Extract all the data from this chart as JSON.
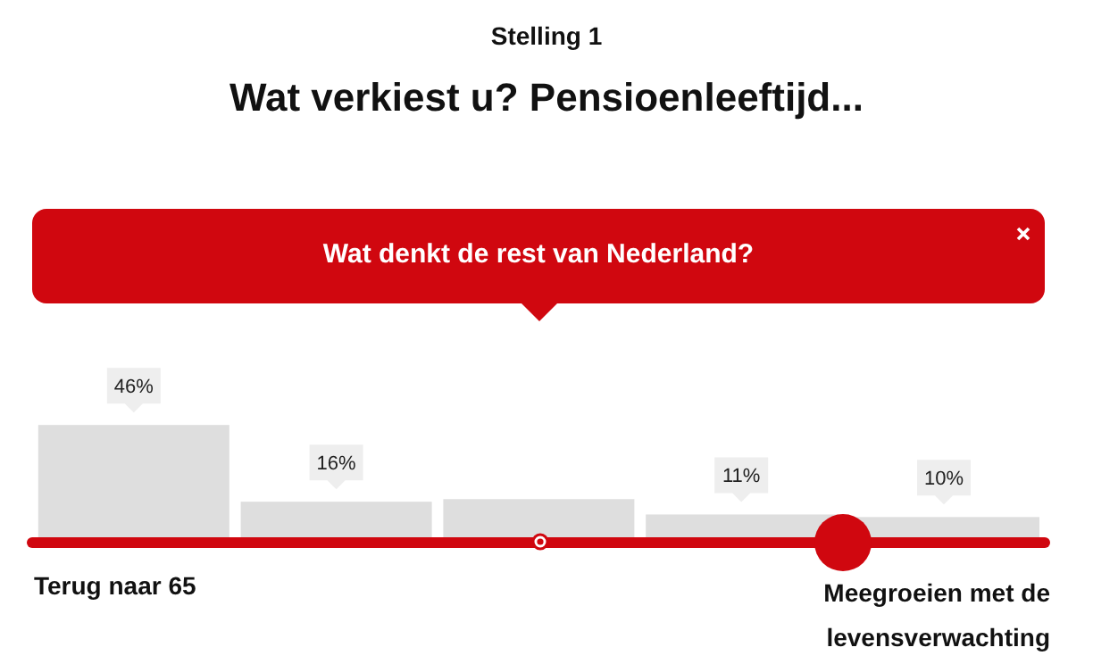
{
  "chart_data": {
    "type": "bar",
    "subtitle": "Stelling 1",
    "title": "Wat verkiest u? Pensioenleeftijd...",
    "annotations": [
      "Wat denkt de rest van Nederland?",
      "Terug naar 65",
      "Meegroeien met de levensverwachting"
    ],
    "categories": [
      null,
      null,
      null,
      null,
      null
    ],
    "values": [
      46,
      16,
      17,
      11,
      10
    ],
    "value_labels": [
      "46%",
      "16%",
      null,
      "11%",
      "10%"
    ],
    "color": "#dedede"
  }
}
